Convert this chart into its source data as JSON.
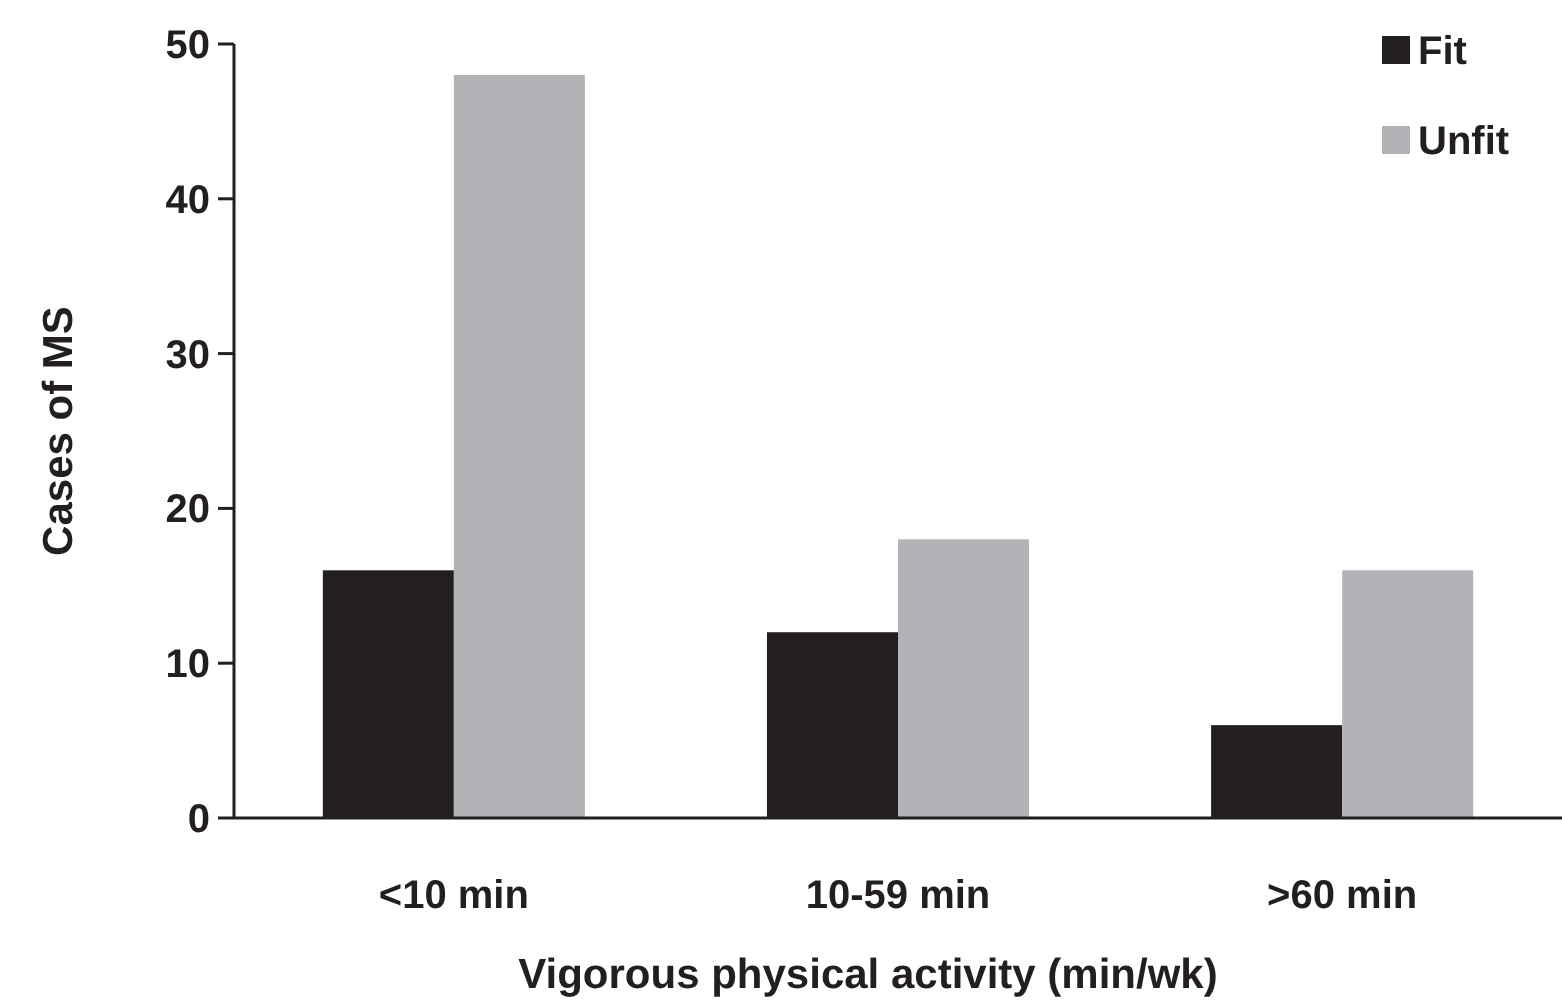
{
  "chart_data": {
    "type": "bar",
    "xlabel": "Vigorous physical activity (min/wk)",
    "ylabel": "Cases of MS",
    "categories": [
      "<10 min",
      "10-59 min",
      ">60 min"
    ],
    "series": [
      {
        "name": "Fit",
        "color": "#231f20",
        "values": [
          16,
          12,
          6
        ]
      },
      {
        "name": "Unfit",
        "color": "#b1b3b6",
        "values": [
          48,
          18,
          16
        ]
      }
    ],
    "ylim": [
      0,
      50
    ],
    "yticks": [
      0,
      10,
      20,
      30,
      40,
      50
    ],
    "grid": false,
    "legend": "top right"
  }
}
